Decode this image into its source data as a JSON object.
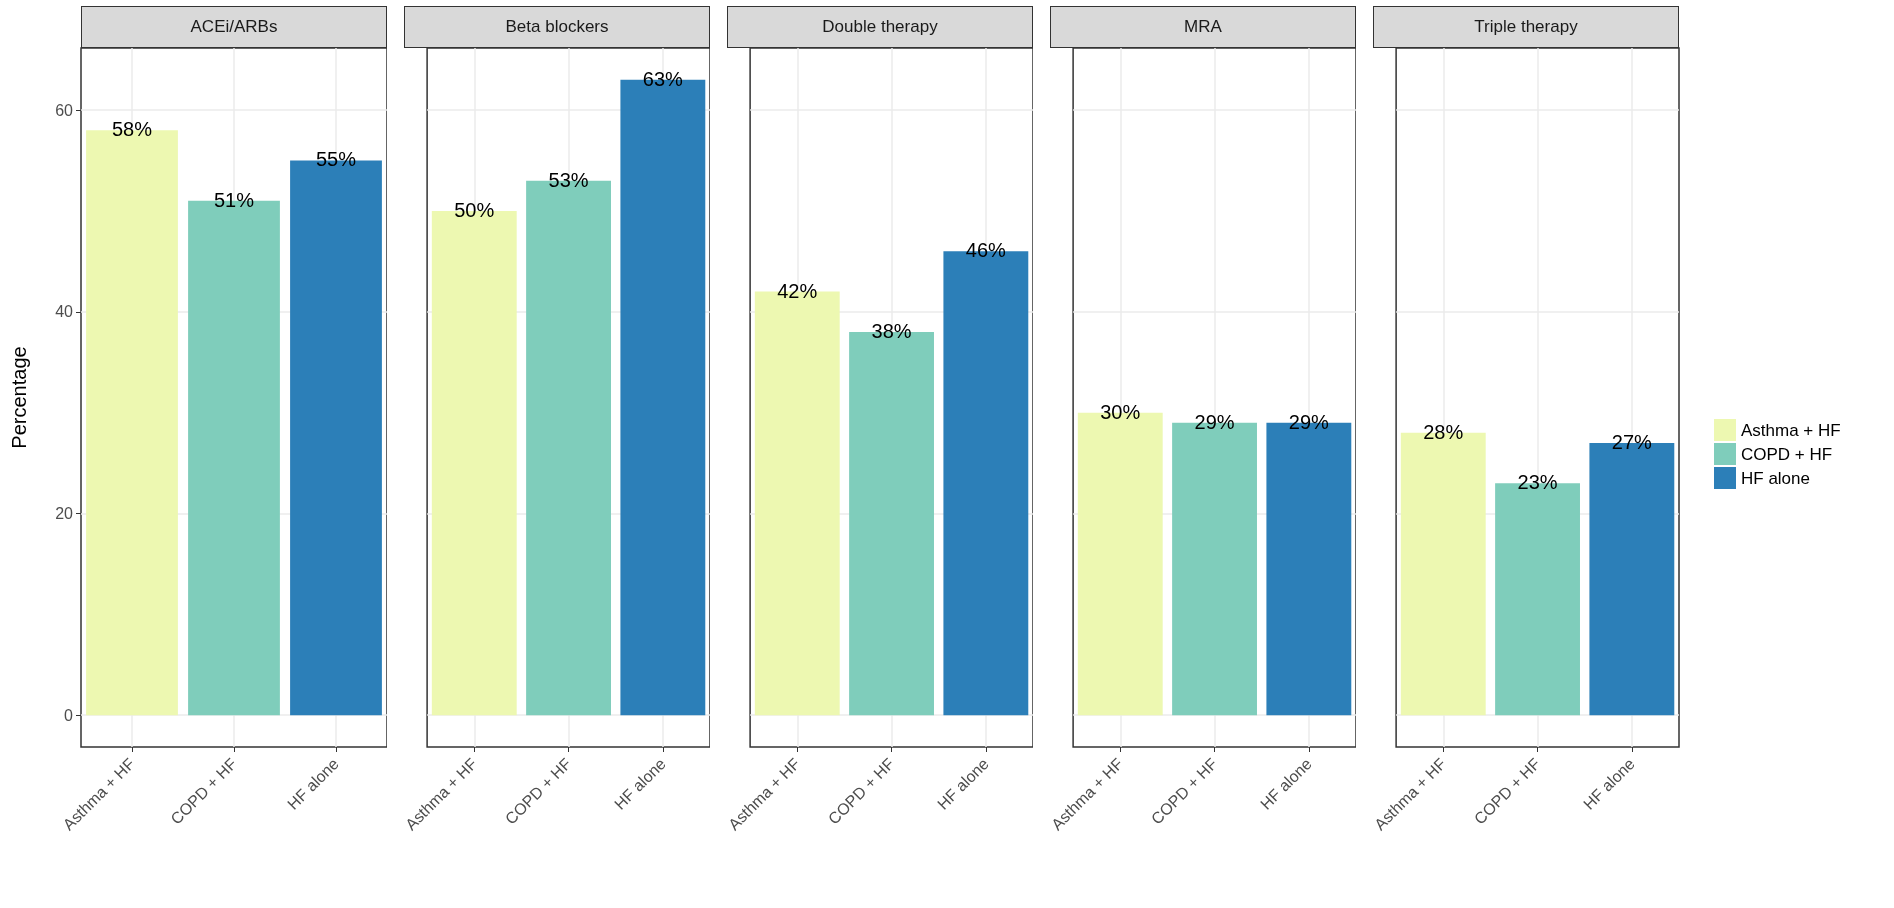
{
  "chart_data": [
    {
      "type": "bar",
      "title": "ACEi/ARBs",
      "ylabel": "Percentage",
      "categories": [
        "Asthma + HF",
        "COPD + HF",
        "HF alone"
      ],
      "series": [
        {
          "color": "#edf8b1",
          "values": [
            58,
            null,
            null
          ],
          "value_labels": [
            "58%",
            null,
            null
          ]
        },
        {
          "color": "#7fcdbb",
          "values": [
            null,
            51,
            null
          ],
          "value_labels": [
            null,
            "51%",
            null
          ]
        },
        {
          "color": "#2c7fb8",
          "values": [
            null,
            null,
            55
          ],
          "value_labels": [
            null,
            null,
            "55%"
          ]
        }
      ],
      "ylim": [
        -3.15,
        66.15
      ],
      "yticks": [
        0,
        20,
        40,
        60
      ],
      "grid": true
    },
    {
      "type": "bar",
      "title": "Beta blockers",
      "categories": [
        "Asthma + HF",
        "COPD + HF",
        "HF alone"
      ],
      "series": [
        {
          "color": "#edf8b1",
          "values": [
            50,
            null,
            null
          ],
          "value_labels": [
            "50%",
            null,
            null
          ]
        },
        {
          "color": "#7fcdbb",
          "values": [
            null,
            53,
            null
          ],
          "value_labels": [
            null,
            "53%",
            null
          ]
        },
        {
          "color": "#2c7fb8",
          "values": [
            null,
            null,
            63
          ],
          "value_labels": [
            null,
            null,
            "63%"
          ]
        }
      ],
      "ylim": [
        -3.15,
        66.15
      ],
      "yticks": [
        0,
        20,
        40,
        60
      ],
      "grid": true,
      "tick_labels": "x"
    },
    {
      "type": "bar",
      "title": "Double therapy",
      "categories": [
        "Asthma + HF",
        "COPD + HF",
        "HF alone"
      ],
      "series": [
        {
          "color": "#edf8b1",
          "values": [
            42,
            null,
            null
          ],
          "value_labels": [
            "42%",
            null,
            null
          ]
        },
        {
          "color": "#7fcdbb",
          "values": [
            null,
            38,
            null
          ],
          "value_labels": [
            null,
            "38%",
            null
          ]
        },
        {
          "color": "#2c7fb8",
          "values": [
            null,
            null,
            46
          ],
          "value_labels": [
            null,
            null,
            "46%"
          ]
        }
      ],
      "ylim": [
        -3.15,
        66.15
      ],
      "yticks": [
        0,
        20,
        40,
        60
      ],
      "grid": true,
      "tick_labels": "x"
    },
    {
      "type": "bar",
      "title": "MRA",
      "categories": [
        "Asthma + HF",
        "COPD + HF",
        "HF alone"
      ],
      "series": [
        {
          "color": "#edf8b1",
          "values": [
            30,
            null,
            null
          ],
          "value_labels": [
            "30%",
            null,
            null
          ]
        },
        {
          "color": "#7fcdbb",
          "values": [
            null,
            29,
            null
          ],
          "value_labels": [
            null,
            "29%",
            null
          ]
        },
        {
          "color": "#2c7fb8",
          "values": [
            null,
            null,
            29
          ],
          "value_labels": [
            null,
            null,
            "29%"
          ]
        }
      ],
      "ylim": [
        -3.15,
        66.15
      ],
      "yticks": [
        0,
        20,
        40,
        60
      ],
      "grid": true,
      "tick_labels": "x"
    },
    {
      "type": "bar",
      "title": "Triple therapy",
      "categories": [
        "Asthma + HF",
        "COPD + HF",
        "HF alone"
      ],
      "series": [
        {
          "name": "Asthma + HF",
          "color": "#edf8b1",
          "values": [
            28,
            null,
            null
          ],
          "value_labels": [
            "28%",
            null,
            null
          ]
        },
        {
          "name": "COPD + HF",
          "color": "#7fcdbb",
          "values": [
            null,
            23,
            null
          ],
          "value_labels": [
            null,
            "23%",
            null
          ]
        },
        {
          "name": "HF alone",
          "color": "#2c7fb8",
          "values": [
            null,
            null,
            27
          ],
          "value_labels": [
            null,
            null,
            "27%"
          ]
        }
      ],
      "ylim": [
        -3.15,
        66.15
      ],
      "yticks": [
        0,
        20,
        40,
        60
      ],
      "grid": true,
      "tick_labels": "x",
      "legend": "right"
    }
  ]
}
